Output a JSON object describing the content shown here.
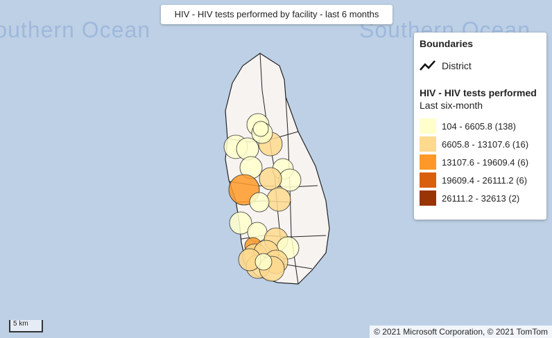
{
  "title": "HIV - HIV tests performed by facility - last 6 months",
  "ocean_labels": [
    "Southern Ocean",
    "Southern Ocean"
  ],
  "legend": {
    "boundaries_title": "Boundaries",
    "boundary_item": "District",
    "layer_title": "HIV - HIV tests performed",
    "layer_subtitle": "Last six-month",
    "classes": [
      {
        "label": "104 - 6605.8 (138)",
        "color": "#ffffcc"
      },
      {
        "label": "6605.8 - 13107.6 (16)",
        "color": "#fed98e"
      },
      {
        "label": "13107.6 - 19609.4 (6)",
        "color": "#fe9929"
      },
      {
        "label": "19609.4 - 26111.2 (6)",
        "color": "#d95f0e"
      },
      {
        "label": "26111.2 - 32613 (2)",
        "color": "#993404"
      }
    ]
  },
  "scale": "5 km",
  "attribution": "© 2021 Microsoft Corporation, © 2021 TomTom"
}
